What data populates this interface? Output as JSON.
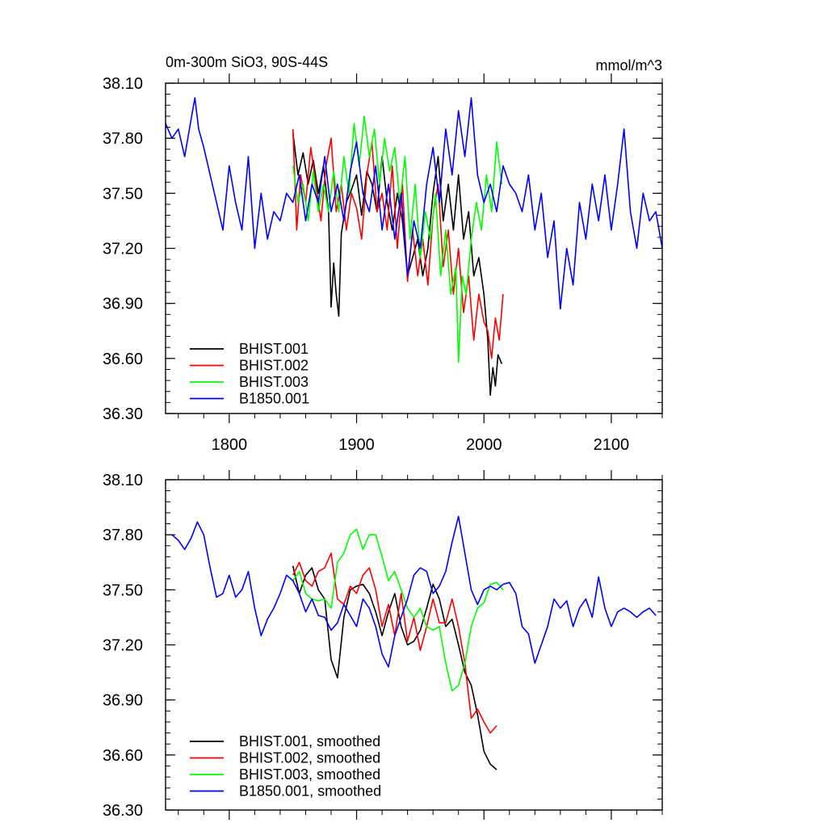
{
  "chart_data": [
    {
      "type": "line",
      "title": "0m-300m SiO3, 90S-44S",
      "units": "mmol/m^3",
      "xlim": [
        1750,
        2140
      ],
      "ylim": [
        36.3,
        38.1
      ],
      "x_ticks": [
        1800,
        1900,
        2000,
        2100
      ],
      "x_tick_labels": [
        "1800",
        "1900",
        "2000",
        "2100"
      ],
      "y_ticks": [
        36.3,
        36.6,
        36.9,
        37.2,
        37.5,
        37.8,
        38.1
      ],
      "y_tick_labels": [
        "36.30",
        "36.60",
        "36.90",
        "37.20",
        "37.50",
        "37.80",
        "38.10"
      ],
      "legend_position": "bottom-left",
      "series": [
        {
          "name": "BHIST.001",
          "color": "#000000",
          "x": [
            1850,
            1854,
            1858,
            1862,
            1866,
            1870,
            1874,
            1878,
            1880,
            1882,
            1884,
            1886,
            1888,
            1892,
            1896,
            1900,
            1904,
            1908,
            1912,
            1916,
            1920,
            1924,
            1928,
            1932,
            1936,
            1940,
            1944,
            1948,
            1952,
            1956,
            1960,
            1964,
            1968,
            1972,
            1976,
            1980,
            1984,
            1988,
            1992,
            1996,
            2000,
            2003,
            2005,
            2007,
            2009,
            2011,
            2014
          ],
          "y": [
            37.83,
            37.6,
            37.72,
            37.55,
            37.68,
            37.5,
            37.65,
            37.4,
            36.88,
            37.12,
            36.95,
            36.83,
            37.28,
            37.45,
            37.52,
            37.6,
            37.38,
            37.62,
            37.55,
            37.4,
            37.7,
            37.45,
            37.3,
            37.5,
            37.35,
            37.05,
            37.15,
            37.25,
            37.05,
            37.2,
            37.5,
            37.7,
            37.35,
            37.55,
            37.3,
            37.6,
            37.25,
            37.4,
            37.05,
            37.15,
            36.95,
            36.7,
            36.4,
            36.55,
            36.45,
            36.62,
            36.57
          ]
        },
        {
          "name": "BHIST.002",
          "color": "#ff0000",
          "x": [
            1850,
            1853,
            1856,
            1860,
            1864,
            1868,
            1872,
            1876,
            1880,
            1884,
            1888,
            1892,
            1896,
            1900,
            1904,
            1908,
            1912,
            1916,
            1920,
            1924,
            1928,
            1932,
            1936,
            1940,
            1944,
            1948,
            1952,
            1956,
            1960,
            1964,
            1968,
            1972,
            1976,
            1980,
            1984,
            1988,
            1992,
            1996,
            2000,
            2003,
            2006,
            2009,
            2012,
            2015
          ],
          "y": [
            37.85,
            37.3,
            37.6,
            37.45,
            37.75,
            37.55,
            37.35,
            37.65,
            37.8,
            37.4,
            37.55,
            37.3,
            37.5,
            37.42,
            37.25,
            37.6,
            37.78,
            37.4,
            37.5,
            37.3,
            37.65,
            37.2,
            37.55,
            37.02,
            37.3,
            37.05,
            37.25,
            37.0,
            37.38,
            37.55,
            37.1,
            37.3,
            36.95,
            37.2,
            36.85,
            37.05,
            36.7,
            36.95,
            36.8,
            36.75,
            36.6,
            36.82,
            36.7,
            36.95
          ]
        },
        {
          "name": "BHIST.003",
          "color": "#00ff00",
          "x": [
            1850,
            1854,
            1858,
            1862,
            1866,
            1870,
            1874,
            1878,
            1882,
            1886,
            1890,
            1894,
            1898,
            1902,
            1906,
            1910,
            1914,
            1918,
            1922,
            1926,
            1930,
            1934,
            1938,
            1942,
            1946,
            1950,
            1954,
            1958,
            1962,
            1966,
            1970,
            1974,
            1978,
            1980,
            1983,
            1986,
            1990,
            1994,
            1998,
            2002,
            2006,
            2010,
            2014
          ],
          "y": [
            37.65,
            37.45,
            37.55,
            37.35,
            37.62,
            37.4,
            37.55,
            37.4,
            37.62,
            37.4,
            37.7,
            37.5,
            37.88,
            37.65,
            37.92,
            37.7,
            37.85,
            37.55,
            37.8,
            37.62,
            37.75,
            37.45,
            37.7,
            37.25,
            37.55,
            37.15,
            37.4,
            37.25,
            37.5,
            37.05,
            37.3,
            36.95,
            37.1,
            36.58,
            37.05,
            36.95,
            37.25,
            37.45,
            37.3,
            37.6,
            37.4,
            37.78,
            37.55
          ]
        },
        {
          "name": "B1850.001",
          "color": "#0000ff",
          "x": [
            1750,
            1755,
            1760,
            1765,
            1770,
            1773,
            1776,
            1780,
            1785,
            1790,
            1795,
            1800,
            1805,
            1810,
            1815,
            1820,
            1825,
            1830,
            1835,
            1840,
            1845,
            1850,
            1855,
            1860,
            1865,
            1870,
            1875,
            1880,
            1885,
            1890,
            1895,
            1900,
            1905,
            1910,
            1915,
            1920,
            1925,
            1930,
            1935,
            1940,
            1945,
            1950,
            1955,
            1960,
            1965,
            1970,
            1975,
            1980,
            1985,
            1990,
            1995,
            2000,
            2005,
            2010,
            2015,
            2020,
            2025,
            2030,
            2035,
            2040,
            2045,
            2050,
            2055,
            2060,
            2065,
            2070,
            2075,
            2080,
            2085,
            2090,
            2095,
            2100,
            2105,
            2110,
            2115,
            2120,
            2125,
            2130,
            2135,
            2140
          ],
          "y": [
            37.88,
            37.8,
            37.85,
            37.7,
            37.9,
            38.02,
            37.85,
            37.75,
            37.6,
            37.45,
            37.3,
            37.65,
            37.45,
            37.3,
            37.7,
            37.2,
            37.5,
            37.25,
            37.4,
            37.35,
            37.5,
            37.45,
            37.6,
            37.35,
            37.55,
            37.45,
            37.7,
            37.4,
            37.55,
            37.35,
            37.62,
            37.78,
            37.5,
            37.4,
            37.65,
            37.3,
            37.55,
            37.25,
            37.5,
            37.05,
            37.35,
            37.2,
            37.55,
            37.75,
            37.45,
            37.85,
            37.6,
            37.95,
            37.7,
            38.02,
            37.6,
            37.45,
            37.55,
            37.4,
            37.65,
            37.55,
            37.5,
            37.4,
            37.6,
            37.3,
            37.5,
            37.15,
            37.35,
            36.87,
            37.2,
            37.0,
            37.45,
            37.25,
            37.55,
            37.35,
            37.6,
            37.3,
            37.55,
            37.85,
            37.4,
            37.2,
            37.5,
            37.35,
            37.4,
            37.2
          ]
        }
      ]
    },
    {
      "type": "line",
      "xlim": [
        1750,
        2140
      ],
      "ylim": [
        36.3,
        38.1
      ],
      "x_ticks": [
        1800,
        1900,
        2000,
        2100
      ],
      "y_ticks": [
        36.3,
        36.6,
        36.9,
        37.2,
        37.5,
        37.8,
        38.1
      ],
      "y_tick_labels": [
        "36.30",
        "36.60",
        "36.90",
        "37.20",
        "37.50",
        "37.80",
        "38.10"
      ],
      "legend_position": "bottom-left",
      "series": [
        {
          "name": "BHIST.001, smoothed",
          "color": "#000000",
          "x": [
            1850,
            1855,
            1860,
            1865,
            1870,
            1875,
            1880,
            1885,
            1890,
            1895,
            1900,
            1905,
            1910,
            1915,
            1920,
            1925,
            1930,
            1935,
            1940,
            1945,
            1950,
            1955,
            1960,
            1965,
            1970,
            1975,
            1980,
            1985,
            1990,
            1995,
            2000,
            2005,
            2010
          ],
          "y": [
            37.63,
            37.48,
            37.58,
            37.62,
            37.5,
            37.45,
            37.12,
            37.02,
            37.35,
            37.5,
            37.52,
            37.53,
            37.48,
            37.38,
            37.25,
            37.38,
            37.48,
            37.3,
            37.2,
            37.22,
            37.28,
            37.4,
            37.53,
            37.45,
            37.3,
            37.34,
            37.2,
            37.05,
            36.98,
            36.82,
            36.62,
            36.55,
            36.52
          ]
        },
        {
          "name": "BHIST.002, smoothed",
          "color": "#ff0000",
          "x": [
            1850,
            1855,
            1860,
            1865,
            1870,
            1875,
            1880,
            1885,
            1890,
            1895,
            1900,
            1905,
            1910,
            1915,
            1920,
            1925,
            1930,
            1935,
            1940,
            1945,
            1950,
            1955,
            1960,
            1965,
            1970,
            1975,
            1980,
            1985,
            1990,
            1995,
            2000,
            2005,
            2010
          ],
          "y": [
            37.58,
            37.65,
            37.55,
            37.52,
            37.6,
            37.62,
            37.7,
            37.45,
            37.42,
            37.52,
            37.48,
            37.58,
            37.62,
            37.5,
            37.3,
            37.42,
            37.25,
            37.48,
            37.22,
            37.35,
            37.17,
            37.3,
            37.45,
            37.32,
            37.32,
            37.45,
            37.3,
            37.1,
            36.8,
            36.85,
            36.78,
            36.72,
            36.76
          ]
        },
        {
          "name": "BHIST.003, smoothed",
          "color": "#00ff00",
          "x": [
            1850,
            1855,
            1860,
            1865,
            1870,
            1875,
            1880,
            1885,
            1890,
            1895,
            1900,
            1905,
            1910,
            1915,
            1920,
            1925,
            1930,
            1935,
            1940,
            1945,
            1950,
            1955,
            1960,
            1965,
            1970,
            1975,
            1980,
            1985,
            1990,
            1995,
            2000,
            2005,
            2010,
            2015
          ],
          "y": [
            37.55,
            37.6,
            37.48,
            37.45,
            37.44,
            37.45,
            37.4,
            37.65,
            37.7,
            37.8,
            37.83,
            37.72,
            37.8,
            37.8,
            37.68,
            37.55,
            37.6,
            37.5,
            37.4,
            37.35,
            37.4,
            37.3,
            37.28,
            37.3,
            37.1,
            36.95,
            36.98,
            37.1,
            37.3,
            37.4,
            37.43,
            37.53,
            37.54,
            37.5
          ]
        },
        {
          "name": "B1850.001, smoothed",
          "color": "#0000ff",
          "x": [
            1755,
            1760,
            1765,
            1770,
            1775,
            1780,
            1785,
            1790,
            1795,
            1800,
            1805,
            1810,
            1815,
            1820,
            1825,
            1830,
            1835,
            1840,
            1845,
            1850,
            1855,
            1860,
            1865,
            1870,
            1875,
            1880,
            1885,
            1890,
            1895,
            1900,
            1905,
            1910,
            1915,
            1920,
            1925,
            1930,
            1935,
            1940,
            1945,
            1950,
            1955,
            1960,
            1965,
            1970,
            1975,
            1980,
            1985,
            1990,
            1995,
            2000,
            2005,
            2010,
            2015,
            2020,
            2025,
            2030,
            2035,
            2040,
            2045,
            2050,
            2055,
            2060,
            2065,
            2070,
            2075,
            2080,
            2085,
            2090,
            2095,
            2100,
            2105,
            2110,
            2115,
            2120,
            2125,
            2130,
            2135
          ],
          "y": [
            37.8,
            37.77,
            37.72,
            37.78,
            37.87,
            37.8,
            37.62,
            37.46,
            37.48,
            37.58,
            37.46,
            37.5,
            37.6,
            37.4,
            37.25,
            37.34,
            37.4,
            37.48,
            37.58,
            37.55,
            37.48,
            37.38,
            37.45,
            37.36,
            37.35,
            37.28,
            37.32,
            37.42,
            37.36,
            37.3,
            37.45,
            37.4,
            37.3,
            37.15,
            37.08,
            37.25,
            37.35,
            37.45,
            37.58,
            37.62,
            37.6,
            37.48,
            37.52,
            37.6,
            37.76,
            37.9,
            37.7,
            37.5,
            37.42,
            37.5,
            37.52,
            37.5,
            37.53,
            37.54,
            37.48,
            37.3,
            37.26,
            37.1,
            37.2,
            37.3,
            37.45,
            37.4,
            37.44,
            37.3,
            37.4,
            37.45,
            37.35,
            37.57,
            37.4,
            37.3,
            37.38,
            37.4,
            37.38,
            37.35,
            37.38,
            37.4,
            37.36
          ]
        }
      ]
    }
  ]
}
